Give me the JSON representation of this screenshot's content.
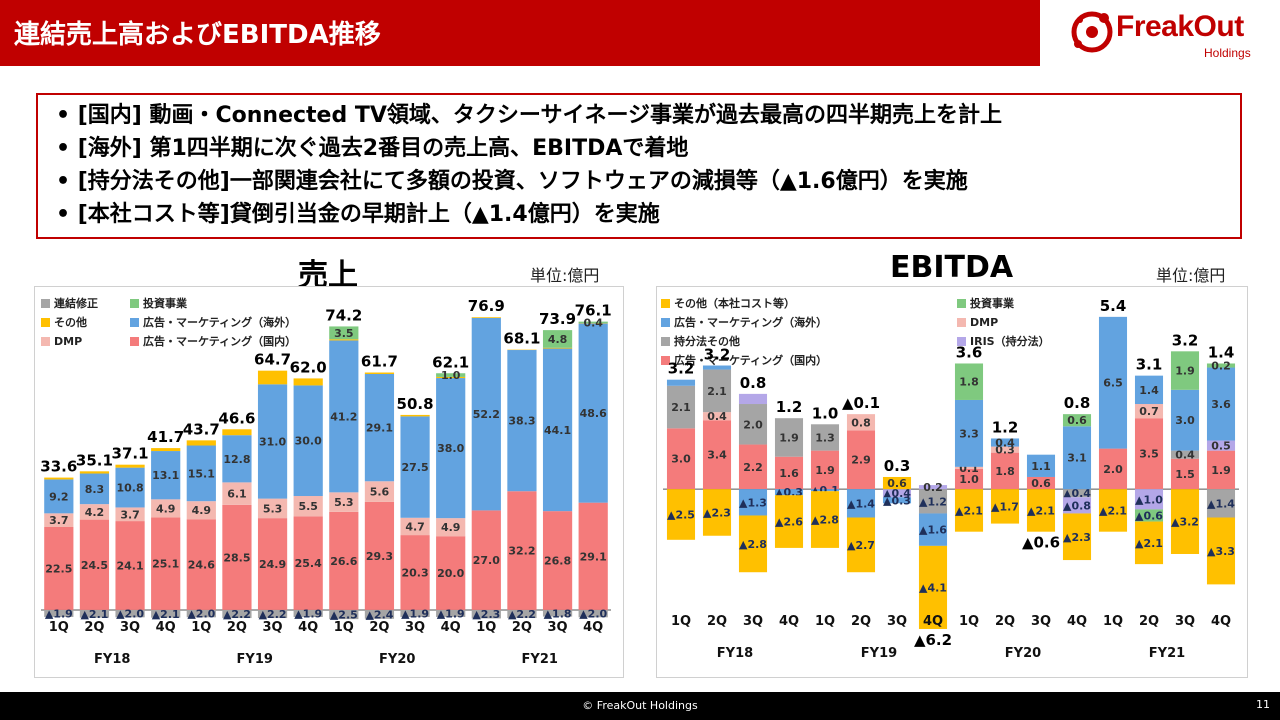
{
  "header": {
    "title": "連結売上高およびEBITDA推移",
    "logo_text": "FreakOut",
    "logo_sub": "Holdings"
  },
  "bullets": [
    "• [国内] 動画・Connected TV領域、タクシーサイネージ事業が過去最高の四半期売上を計上",
    "• [海外] 第1四半期に次ぐ過去2番目の売上高、EBITDAで着地",
    "• [持分法その他]一部関連会社にて多額の投資、ソフトウェアの減損等（▲1.6億円）を実施",
    "• [本社コスト等]貸倒引当金の早期計上（▲1.4億円）を実施"
  ],
  "footer": {
    "copyright": "© FreakOut Holdings",
    "page": "11"
  },
  "colors": {
    "brand": "#c00000",
    "domestic": "#f47b7b",
    "overseas": "#62a3e0",
    "dmp": "#f4b8b0",
    "other": "#ffc000",
    "investment": "#7fc97f",
    "adjust": "#a5a5a5",
    "iris": "#b4a7e8"
  },
  "chart_data": [
    {
      "type": "bar",
      "title": "売上",
      "unit": "単位:億円",
      "quarters": [
        "1Q",
        "2Q",
        "3Q",
        "4Q",
        "1Q",
        "2Q",
        "3Q",
        "4Q",
        "1Q",
        "2Q",
        "3Q",
        "4Q",
        "1Q",
        "2Q",
        "3Q",
        "4Q"
      ],
      "fiscal_years": [
        "FY18",
        "FY19",
        "FY20",
        "FY21"
      ],
      "ylim": [
        -3,
        80
      ],
      "legend": [
        {
          "name": "連結修正",
          "color": "#a5a5a5"
        },
        {
          "name": "投資事業",
          "color": "#7fc97f"
        },
        {
          "name": "その他",
          "color": "#ffc000"
        },
        {
          "name": "広告・マーケティング（海外）",
          "color": "#62a3e0"
        },
        {
          "name": "DMP",
          "color": "#f4b8b0"
        },
        {
          "name": "広告・マーケティング（国内）",
          "color": "#f47b7b"
        }
      ],
      "series": [
        {
          "name": "広告・マーケティング（国内）",
          "color": "#f47b7b",
          "values": [
            22.5,
            24.5,
            24.1,
            25.1,
            24.6,
            28.5,
            24.9,
            25.4,
            26.6,
            29.3,
            20.3,
            20.0,
            27.0,
            32.2,
            26.8,
            29.1
          ],
          "labels": [
            "22.5",
            "24.5",
            "24.1",
            "25.1",
            "24.6",
            "28.5",
            "24.9",
            "25.4",
            "26.6",
            "29.3",
            "20.3",
            "20.0",
            "27.0",
            "32.2",
            "26.8",
            "29.1"
          ]
        },
        {
          "name": "DMP",
          "color": "#f4b8b0",
          "values": [
            3.7,
            4.2,
            3.7,
            4.9,
            4.9,
            6.1,
            5.3,
            5.5,
            5.3,
            5.6,
            4.7,
            4.9,
            0,
            0,
            0,
            0
          ],
          "labels": [
            "3.7",
            "4.2",
            "3.7",
            "4.9",
            "4.9",
            "6.1",
            "5.3",
            "5.5",
            "5.3",
            "5.6",
            "4.7",
            "4.9",
            "",
            "",
            "",
            ""
          ]
        },
        {
          "name": "広告・マーケティング（海外）",
          "color": "#62a3e0",
          "values": [
            9.2,
            8.3,
            10.8,
            13.1,
            15.1,
            12.8,
            31.0,
            30.0,
            41.2,
            29.1,
            27.5,
            38.0,
            52.2,
            38.3,
            44.1,
            48.6
          ],
          "labels": [
            "9.2",
            "8.3",
            "10.8",
            "13.1",
            "15.1",
            "12.8",
            "31.0",
            "30.0",
            "41.2",
            "29.1",
            "27.5",
            "38.0",
            "52.2",
            "38.3",
            "44.1",
            "48.6"
          ]
        },
        {
          "name": "その他",
          "color": "#ffc000",
          "values": [
            0.5,
            0.6,
            0.8,
            0.8,
            1.4,
            1.6,
            3.7,
            1.9,
            0.3,
            0.4,
            0.4,
            0.3,
            0.2,
            0.1,
            0.2,
            0.1
          ],
          "labels": [
            "",
            "",
            "",
            "",
            "",
            "",
            "",
            "",
            "",
            "",
            "",
            "",
            "",
            "",
            "",
            ""
          ]
        },
        {
          "name": "投資事業",
          "color": "#7fc97f",
          "values": [
            0,
            0,
            0,
            0,
            0,
            0,
            0,
            0,
            3.5,
            0,
            0,
            1.0,
            0,
            0,
            4.8,
            0.4
          ],
          "labels": [
            "",
            "",
            "",
            "",
            "",
            "",
            "",
            "",
            "3.5",
            "",
            "",
            "1.0",
            "",
            "",
            "4.8",
            "0.4"
          ]
        },
        {
          "name": "連結修正",
          "color": "#a5a5a5",
          "values": [
            -1.9,
            -2.1,
            -2.0,
            -2.1,
            -2.0,
            -2.2,
            -2.2,
            -1.9,
            -2.5,
            -2.4,
            -1.9,
            -1.9,
            -2.3,
            -2.2,
            -1.8,
            -2.0
          ],
          "labels": [
            "▲1.9",
            "▲2.1",
            "▲2.0",
            "▲2.1",
            "▲2.0",
            "▲2.2",
            "▲2.2",
            "▲1.9",
            "▲2.5",
            "▲2.4",
            "▲1.9",
            "▲1.9",
            "▲2.3",
            "▲2.2",
            "▲1.8",
            "▲2.0"
          ]
        }
      ],
      "totals": [
        "33.6",
        "35.1",
        "37.1",
        "41.7",
        "43.7",
        "46.6",
        "64.7",
        "62.0",
        "74.2",
        "61.7",
        "50.8",
        "62.1",
        "76.9",
        "68.1",
        "73.9",
        "76.1"
      ]
    },
    {
      "type": "bar",
      "title": "EBITDA",
      "unit": "単位:億円",
      "quarters": [
        "1Q",
        "2Q",
        "3Q",
        "4Q",
        "1Q",
        "2Q",
        "3Q",
        "4Q",
        "1Q",
        "2Q",
        "3Q",
        "4Q",
        "1Q",
        "2Q",
        "3Q",
        "4Q"
      ],
      "fiscal_years": [
        "FY18",
        "FY19",
        "FY20",
        "FY21"
      ],
      "ylim": [
        -7,
        8
      ],
      "legend": [
        {
          "name": "その他（本社コスト等）",
          "color": "#ffc000"
        },
        {
          "name": "投資事業",
          "color": "#7fc97f"
        },
        {
          "name": "広告・マーケティング（海外）",
          "color": "#62a3e0"
        },
        {
          "name": "DMP",
          "color": "#f4b8b0"
        },
        {
          "name": "持分法その他",
          "color": "#a5a5a5"
        },
        {
          "name": "IRIS（持分法）",
          "color": "#b4a7e8"
        },
        {
          "name": "広告・マーケティング（国内）",
          "color": "#f47b7b"
        }
      ],
      "series": [
        {
          "name": "広告・マーケティング（国内）",
          "color": "#f47b7b",
          "values": [
            3.0,
            3.4,
            2.2,
            1.6,
            1.9,
            2.9,
            0,
            0,
            1.0,
            1.8,
            0.6,
            0,
            2.0,
            3.5,
            1.5,
            1.9
          ],
          "labels": [
            "3.0",
            "3.4",
            "2.2",
            "1.6",
            "1.9",
            "2.9",
            "",
            "",
            "1.0",
            "1.8",
            "0.6",
            "",
            "2.0",
            "3.5",
            "1.5",
            "1.9"
          ]
        },
        {
          "name": "DMP",
          "color": "#f4b8b0",
          "values": [
            0,
            0.4,
            0,
            0,
            0,
            0.8,
            0,
            0,
            0.1,
            0.3,
            0,
            0,
            0,
            0.7,
            0,
            0
          ],
          "labels": [
            "",
            "0.4",
            "",
            "",
            "",
            "0.8",
            "",
            "",
            "0.1",
            "0.3",
            "",
            "",
            "",
            "0.7",
            "",
            ""
          ]
        },
        {
          "name": "持分法その他",
          "color": "#a5a5a5",
          "values": [
            2.1,
            2.1,
            2.0,
            1.9,
            1.3,
            0,
            0,
            -1.2,
            0,
            0,
            0,
            -0.4,
            0,
            0,
            0.4,
            -1.4
          ],
          "labels": [
            "2.1",
            "2.1",
            "2.0",
            "1.9",
            "1.3",
            "",
            "",
            "▲1.2",
            "",
            "",
            "",
            "▲0.4",
            "",
            "",
            "0.4",
            "▲1.4"
          ]
        },
        {
          "name": "IRIS（持分法）",
          "color": "#b4a7e8",
          "values": [
            0,
            0,
            0.5,
            0,
            0,
            0,
            -0.4,
            0.2,
            0,
            0,
            0,
            -0.8,
            0,
            -1.0,
            0,
            0.5
          ],
          "labels": [
            "",
            "",
            "",
            "",
            "",
            "",
            "▲0.4",
            "0.2",
            "",
            "",
            "",
            "▲0.8",
            "",
            "▲1.0",
            "",
            "0.5"
          ]
        },
        {
          "name": "広告・マーケティング（海外）",
          "color": "#62a3e0",
          "values": [
            0.3,
            0.2,
            -1.3,
            -0.3,
            -0.1,
            -1.4,
            -0.3,
            -1.6,
            3.3,
            0.4,
            1.1,
            3.1,
            6.5,
            1.4,
            3.0,
            3.6
          ],
          "labels": [
            "",
            "",
            "▲1.3",
            "▲0.3",
            "▲0.1",
            "▲1.4",
            "▲0.3",
            "▲1.6",
            "3.3",
            "0.4",
            "1.1",
            "3.1",
            "6.5",
            "1.4",
            "3.0",
            "3.6"
          ]
        },
        {
          "name": "投資事業",
          "color": "#7fc97f",
          "values": [
            0,
            0,
            0,
            0,
            0,
            0,
            0,
            0,
            1.8,
            0,
            0,
            0.6,
            0,
            -0.6,
            1.9,
            0.2
          ],
          "labels": [
            "",
            "",
            "",
            "",
            "",
            "",
            "",
            "",
            "1.8",
            "",
            "",
            "0.6",
            "",
            "▲0.6",
            "1.9",
            "0.2"
          ]
        },
        {
          "name": "その他（本社コスト等）",
          "color": "#ffc000",
          "values": [
            -2.5,
            -2.3,
            -2.8,
            -2.6,
            -2.8,
            -2.7,
            0.6,
            -4.1,
            -2.1,
            -1.7,
            -2.1,
            -2.3,
            -2.1,
            -2.1,
            -3.2,
            -3.3
          ],
          "labels": [
            "▲2.5",
            "▲2.3",
            "▲2.8",
            "▲2.6",
            "▲2.8",
            "▲2.7",
            "0.6",
            "▲4.1",
            "▲2.1",
            "▲1.7",
            "▲2.1",
            "▲2.3",
            "▲2.1",
            "▲2.1",
            "▲3.2",
            "▲3.3"
          ]
        }
      ],
      "totals": [
        "3.2",
        "3.2",
        "0.8",
        "1.2",
        "1.0",
        "▲0.1",
        "0.3",
        "▲6.2",
        "3.6",
        "1.2",
        "▲0.6",
        "0.8",
        "5.4",
        "3.1",
        "3.2",
        "1.4"
      ],
      "total_positions": [
        "top",
        "top",
        "top",
        "top",
        "top",
        "top",
        "top",
        "bottom",
        "top",
        "top",
        "bottom",
        "top",
        "top",
        "top",
        "top",
        "top"
      ]
    }
  ]
}
